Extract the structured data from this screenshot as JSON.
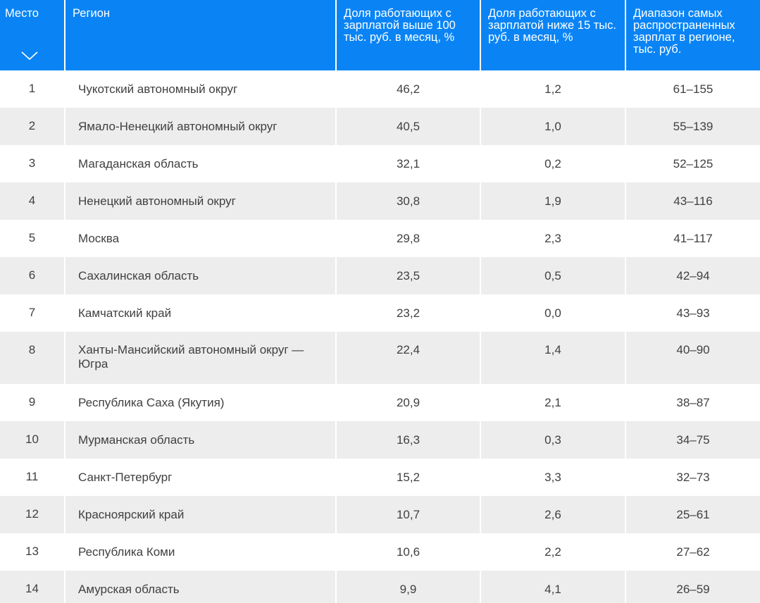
{
  "headers": {
    "place": "Место",
    "region": "Регион",
    "above100": "Доля работающих с зарплатой выше 100 тыс. руб. в месяц, %",
    "below15": "Доля работающих с зарплатой ниже 15 тыс. руб. в месяц, %",
    "range": "Диапазон самых распространенных зарплат в регионе, тыс. руб."
  },
  "rows": [
    {
      "place": "1",
      "region": "Чукотский автономный округ",
      "above100": "46,2",
      "below15": "1,2",
      "range": "61–155"
    },
    {
      "place": "2",
      "region": "Ямало-Ненецкий автономный округ",
      "above100": "40,5",
      "below15": "1,0",
      "range": "55–139"
    },
    {
      "place": "3",
      "region": "Магаданская область",
      "above100": "32,1",
      "below15": "0,2",
      "range": "52–125"
    },
    {
      "place": "4",
      "region": "Ненецкий автономный округ",
      "above100": "30,8",
      "below15": "1,9",
      "range": "43–116"
    },
    {
      "place": "5",
      "region": "Москва",
      "above100": "29,8",
      "below15": "2,3",
      "range": "41–117"
    },
    {
      "place": "6",
      "region": "Сахалинская область",
      "above100": "23,5",
      "below15": "0,5",
      "range": "42–94"
    },
    {
      "place": "7",
      "region": "Камчатский край",
      "above100": "23,2",
      "below15": "0,0",
      "range": "43–93"
    },
    {
      "place": "8",
      "region": "Ханты-Мансийский автономный округ — Югра",
      "above100": "22,4",
      "below15": "1,4",
      "range": "40–90"
    },
    {
      "place": "9",
      "region": "Республика Саха (Якутия)",
      "above100": "20,9",
      "below15": "2,1",
      "range": "38–87"
    },
    {
      "place": "10",
      "region": "Мурманская область",
      "above100": "16,3",
      "below15": "0,3",
      "range": "34–75"
    },
    {
      "place": "11",
      "region": "Санкт-Петербург",
      "above100": "15,2",
      "below15": "3,3",
      "range": "32–73"
    },
    {
      "place": "12",
      "region": "Красноярский край",
      "above100": "10,7",
      "below15": "2,6",
      "range": "25–61"
    },
    {
      "place": "13",
      "region": "Республика Коми",
      "above100": "10,6",
      "below15": "2,2",
      "range": "27–62"
    },
    {
      "place": "14",
      "region": "Амурская область",
      "above100": "9,9",
      "below15": "4,1",
      "range": "26–59"
    }
  ],
  "colors": {
    "header_bg": "#0a84f5",
    "stripe": "#ededed"
  },
  "icons": {
    "sort": "chevron-down-icon"
  }
}
